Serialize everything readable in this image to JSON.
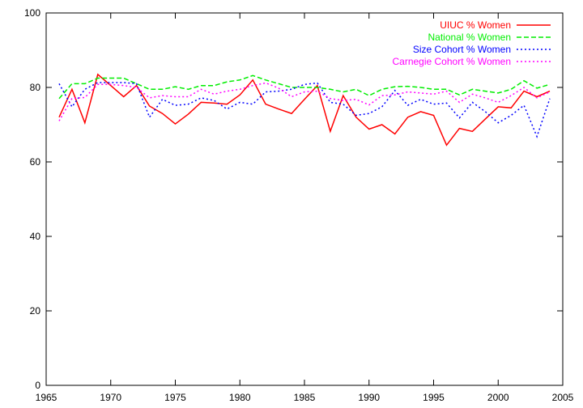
{
  "chart_data": {
    "type": "line",
    "title": "",
    "xlabel": "",
    "ylabel": "",
    "xlim": [
      1965,
      2005
    ],
    "ylim": [
      0,
      100
    ],
    "xticks": [
      1965,
      1970,
      1975,
      1980,
      1985,
      1990,
      1995,
      2000,
      2005
    ],
    "yticks": [
      0,
      20,
      40,
      60,
      80,
      100
    ],
    "grid": false,
    "legend_position": "top-right",
    "x": [
      1966,
      1967,
      1968,
      1969,
      1970,
      1971,
      1972,
      1973,
      1974,
      1975,
      1976,
      1977,
      1978,
      1979,
      1980,
      1981,
      1982,
      1983,
      1984,
      1985,
      1986,
      1987,
      1988,
      1989,
      1990,
      1991,
      1992,
      1993,
      1994,
      1995,
      1996,
      1997,
      1998,
      1999,
      2000,
      2001,
      2002,
      2003,
      2004
    ],
    "series": [
      {
        "name": "UIUC % Women",
        "color": "#ff0000",
        "dash": "solid",
        "values": [
          72,
          79.5,
          70.5,
          83.5,
          80.5,
          77.5,
          80.5,
          75,
          73,
          70.2,
          72.8,
          76,
          75.8,
          75.5,
          78,
          82,
          75.5,
          74.2,
          73,
          76.8,
          80.5,
          68.2,
          77.8,
          72,
          68.8,
          70,
          67.5,
          72,
          73.5,
          72.5,
          64.5,
          69,
          68.2,
          71.5,
          74.8,
          74.5,
          79,
          77.5,
          79
        ]
      },
      {
        "name": "National % Women",
        "color": "#00ee00",
        "dash": "dashed",
        "values": [
          77,
          81,
          81,
          82.5,
          82.5,
          82.5,
          81,
          79.5,
          79.5,
          80.2,
          79.5,
          80.5,
          80.5,
          81.5,
          82,
          83.2,
          82,
          81,
          80,
          80,
          80,
          79.5,
          78.8,
          79.5,
          77.8,
          79.5,
          80.2,
          80.3,
          80,
          79.5,
          79.5,
          78,
          79.5,
          79,
          78.5,
          79.5,
          81.8,
          79.8,
          80.8
        ]
      },
      {
        "name": "Size Cohort % Women",
        "color": "#0000ff",
        "dash": "dotted",
        "values": [
          81,
          74.8,
          79.5,
          81.3,
          81.3,
          81.3,
          81,
          72,
          76.8,
          75.2,
          75.5,
          77.2,
          76.5,
          74.2,
          76,
          75.5,
          78.8,
          79,
          79.5,
          80.8,
          81.2,
          76,
          75.5,
          72.5,
          73,
          74.8,
          79.2,
          75.2,
          76.8,
          75.5,
          75.8,
          71.8,
          76,
          73.5,
          70.5,
          72.5,
          75.2,
          66.8,
          77
        ]
      },
      {
        "name": "Carnegie Cohort % Women",
        "color": "#ff00ff",
        "dash": "dotted",
        "values": [
          71,
          77,
          77.3,
          80.8,
          80.8,
          80.5,
          80,
          77.2,
          77.8,
          77.5,
          77.5,
          79.5,
          78.2,
          79,
          79.5,
          80.5,
          81.2,
          79.8,
          77.5,
          78.8,
          79,
          77,
          76.5,
          76.8,
          75.3,
          77.8,
          78,
          78.8,
          78.5,
          78.2,
          79,
          76,
          78.2,
          77.2,
          76,
          77.8,
          80,
          77.2,
          78.8
        ]
      }
    ]
  }
}
